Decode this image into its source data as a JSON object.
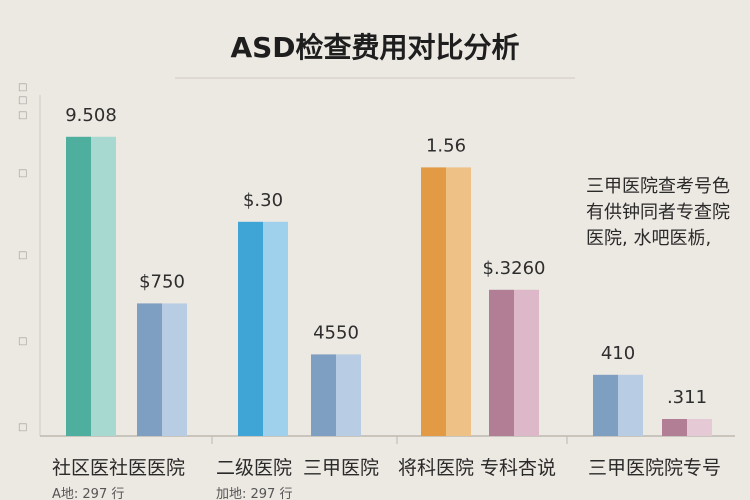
{
  "chart_data": {
    "type": "bar",
    "title": "ASD检查费用对比分析",
    "xlabel": "",
    "ylabel": "",
    "ylim": [
      0,
      100
    ],
    "grid": false,
    "series_colors_note": "each bar drawn as darker + lighter half",
    "bars": [
      {
        "label": "9.508",
        "value": 88,
        "color_dark": "#4FAF9F",
        "color_light": "#A7D9D0"
      },
      {
        "label": "$750",
        "value": 39,
        "color_dark": "#7E9EC2",
        "color_light": "#B8CDE3"
      },
      {
        "label": "$.30",
        "value": 63,
        "color_dark": "#3FA4D6",
        "color_light": "#9FD0EC"
      },
      {
        "label": "4550",
        "value": 24,
        "color_dark": "#7E9EC2",
        "color_light": "#B8CDE3"
      },
      {
        "label": "1.56",
        "value": 79,
        "color_dark": "#E29A45",
        "color_light": "#EEC287"
      },
      {
        "label": "$.3260",
        "value": 43,
        "color_dark": "#B27E96",
        "color_light": "#DDB8C8"
      },
      {
        "label": "410",
        "value": 18,
        "color_dark": "#7E9EC2",
        "color_light": "#B8CDE3"
      },
      {
        "label": ".311",
        "value": 5,
        "color_dark": "#B27E96",
        "color_light": "#E5C9D5"
      }
    ],
    "categories": [
      "社区医社医医院",
      "二级医院",
      "三甲医院",
      "将科医院",
      "专科杏说",
      "三甲医院院专号"
    ],
    "sub_labels": [
      "A地: 297 行",
      "加地: 297 行"
    ],
    "annotation_lines": [
      "三甲医院查考号色",
      "有供钟同者专查院",
      "医院, 水吧医栃,"
    ]
  }
}
